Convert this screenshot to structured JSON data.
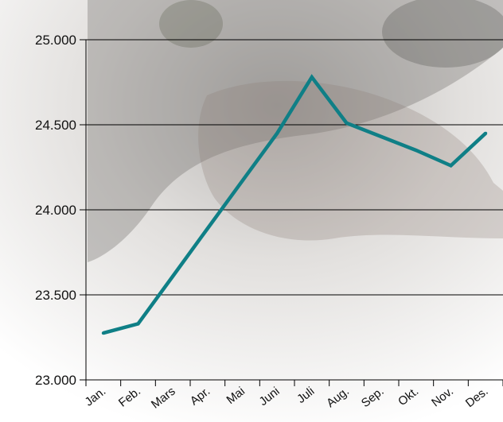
{
  "chart_data": {
    "type": "line",
    "title": "",
    "xlabel": "",
    "ylabel": "",
    "categories": [
      "Jan.",
      "Feb.",
      "Mars",
      "Apr.",
      "Mai",
      "Juni",
      "Juli",
      "Aug.",
      "Sep.",
      "Okt.",
      "Nov.",
      "Des."
    ],
    "series": [
      {
        "values": [
          23275,
          23330,
          23610,
          23890,
          24170,
          24450,
          24780,
          24510,
          24430,
          24350,
          24260,
          24450
        ],
        "color": "#0f7f86"
      }
    ],
    "ylim": [
      23000,
      25000
    ],
    "yticks": [
      23000,
      23500,
      24000,
      24500,
      25000
    ],
    "ytick_labels": [
      "23.000",
      "23.500",
      "24.000",
      "24.500",
      "25.000"
    ],
    "grid": "horizontal",
    "legend": "none",
    "background": "photograph"
  }
}
